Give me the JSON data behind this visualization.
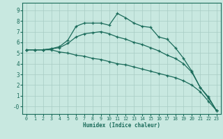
{
  "xlabel": "Humidex (Indice chaleur)",
  "xlim": [
    -0.5,
    23.5
  ],
  "ylim": [
    -0.7,
    9.7
  ],
  "xticks": [
    0,
    1,
    2,
    3,
    4,
    5,
    6,
    7,
    8,
    9,
    10,
    11,
    12,
    13,
    14,
    15,
    16,
    17,
    18,
    19,
    20,
    21,
    22,
    23
  ],
  "yticks": [
    0,
    1,
    2,
    3,
    4,
    5,
    6,
    7,
    8,
    9
  ],
  "ytick_labels": [
    "-0",
    "1",
    "2",
    "3",
    "4",
    "5",
    "6",
    "7",
    "8",
    "9"
  ],
  "bg_color": "#c8e8e0",
  "grid_color": "#a8ccc4",
  "line_color": "#1a6b5a",
  "line1_x": [
    0,
    1,
    2,
    3,
    4,
    5,
    6,
    7,
    8,
    9,
    10,
    11,
    12,
    13,
    14,
    15,
    16,
    17,
    18,
    19,
    20,
    21,
    22,
    23
  ],
  "line1_y": [
    5.3,
    5.3,
    5.3,
    5.3,
    5.1,
    5.0,
    4.8,
    4.7,
    4.5,
    4.4,
    4.2,
    4.0,
    3.9,
    3.7,
    3.5,
    3.3,
    3.1,
    2.9,
    2.7,
    2.4,
    2.0,
    1.4,
    0.5,
    -0.4
  ],
  "line2_x": [
    0,
    1,
    2,
    3,
    4,
    5,
    6,
    7,
    8,
    9,
    10,
    11,
    12,
    13,
    14,
    15,
    16,
    17,
    18,
    19,
    20,
    21,
    22,
    23
  ],
  "line2_y": [
    5.3,
    5.3,
    5.3,
    5.4,
    5.5,
    5.9,
    6.5,
    6.8,
    6.9,
    7.0,
    6.8,
    6.5,
    6.3,
    6.0,
    5.8,
    5.5,
    5.2,
    4.8,
    4.5,
    4.0,
    3.2,
    1.8,
    0.8,
    -0.4
  ],
  "line3_x": [
    0,
    1,
    2,
    3,
    4,
    5,
    6,
    7,
    8,
    9,
    10,
    11,
    12,
    13,
    14,
    15,
    16,
    17,
    18,
    19,
    20,
    21,
    22,
    23
  ],
  "line3_y": [
    5.3,
    5.3,
    5.3,
    5.4,
    5.6,
    6.2,
    7.5,
    7.8,
    7.8,
    7.8,
    7.6,
    8.7,
    8.3,
    7.8,
    7.5,
    7.4,
    6.5,
    6.3,
    5.5,
    4.5,
    3.3,
    1.8,
    0.9,
    -0.4
  ]
}
